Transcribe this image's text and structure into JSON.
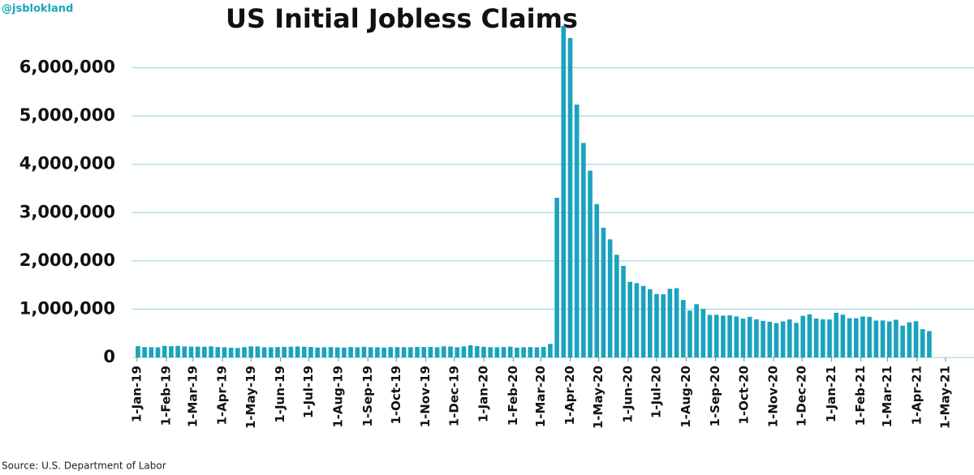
{
  "chart_data": {
    "type": "bar",
    "handle": "@jsblokland",
    "title": "US Initial Jobless Claims",
    "source": "Source: U.S. Department of Labor",
    "color": "#1aa3bd",
    "grid": true,
    "x": [
      "2019-01-05",
      "2019-01-12",
      "2019-01-19",
      "2019-01-26",
      "2019-02-02",
      "2019-02-09",
      "2019-02-16",
      "2019-02-23",
      "2019-03-02",
      "2019-03-09",
      "2019-03-16",
      "2019-03-23",
      "2019-03-30",
      "2019-04-06",
      "2019-04-13",
      "2019-04-20",
      "2019-04-27",
      "2019-05-04",
      "2019-05-11",
      "2019-05-18",
      "2019-05-25",
      "2019-06-01",
      "2019-06-08",
      "2019-06-15",
      "2019-06-22",
      "2019-06-29",
      "2019-07-06",
      "2019-07-13",
      "2019-07-20",
      "2019-07-27",
      "2019-08-03",
      "2019-08-10",
      "2019-08-17",
      "2019-08-24",
      "2019-08-31",
      "2019-09-07",
      "2019-09-14",
      "2019-09-21",
      "2019-09-28",
      "2019-10-05",
      "2019-10-12",
      "2019-10-19",
      "2019-10-26",
      "2019-11-02",
      "2019-11-09",
      "2019-11-16",
      "2019-11-23",
      "2019-11-30",
      "2019-12-07",
      "2019-12-14",
      "2019-12-21",
      "2019-12-28",
      "2020-01-04",
      "2020-01-11",
      "2020-01-18",
      "2020-01-25",
      "2020-02-01",
      "2020-02-08",
      "2020-02-15",
      "2020-02-22",
      "2020-02-29",
      "2020-03-07",
      "2020-03-14",
      "2020-03-21",
      "2020-03-28",
      "2020-04-04",
      "2020-04-11",
      "2020-04-18",
      "2020-04-25",
      "2020-05-02",
      "2020-05-09",
      "2020-05-16",
      "2020-05-23",
      "2020-05-30",
      "2020-06-06",
      "2020-06-13",
      "2020-06-20",
      "2020-06-27",
      "2020-07-04",
      "2020-07-11",
      "2020-07-18",
      "2020-07-25",
      "2020-08-01",
      "2020-08-08",
      "2020-08-15",
      "2020-08-22",
      "2020-08-29",
      "2020-09-05",
      "2020-09-12",
      "2020-09-19",
      "2020-09-26",
      "2020-10-03",
      "2020-10-10",
      "2020-10-17",
      "2020-10-24",
      "2020-10-31",
      "2020-11-07",
      "2020-11-14",
      "2020-11-21",
      "2020-11-28",
      "2020-12-05",
      "2020-12-12",
      "2020-12-19",
      "2020-12-26",
      "2021-01-02",
      "2021-01-09",
      "2021-01-16",
      "2021-01-23",
      "2021-01-30",
      "2021-02-06",
      "2021-02-13",
      "2021-02-20",
      "2021-02-27",
      "2021-03-06",
      "2021-03-13",
      "2021-03-20",
      "2021-03-27",
      "2021-04-03",
      "2021-04-10",
      "2021-04-17"
    ],
    "values": [
      233000,
      216000,
      213000,
      210000,
      240000,
      234000,
      239000,
      229000,
      225000,
      225000,
      221000,
      230000,
      216000,
      211000,
      202000,
      196000,
      213000,
      230000,
      228000,
      212000,
      211000,
      216000,
      219000,
      222000,
      227000,
      222000,
      218000,
      206000,
      211000,
      216000,
      209000,
      206000,
      216000,
      209000,
      220000,
      213000,
      211000,
      206000,
      215000,
      214000,
      213000,
      213000,
      219000,
      217000,
      218000,
      211000,
      230000,
      226000,
      212000,
      228000,
      252000,
      235000,
      222000,
      214000,
      211000,
      216000,
      223000,
      204000,
      212000,
      216000,
      211000,
      219000,
      282000,
      3307000,
      6867000,
      6615000,
      5237000,
      4442000,
      3867000,
      3176000,
      2687000,
      2446000,
      2126000,
      1897000,
      1566000,
      1540000,
      1482000,
      1413000,
      1314000,
      1307000,
      1422000,
      1435000,
      1191000,
      971000,
      1104000,
      1006000,
      881000,
      884000,
      866000,
      873000,
      849000,
      804000,
      842000,
      791000,
      758000,
      738000,
      711000,
      748000,
      787000,
      716000,
      862000,
      892000,
      806000,
      790000,
      787000,
      926000,
      886000,
      812000,
      812000,
      848000,
      841000,
      765000,
      766000,
      746000,
      781000,
      658000,
      728000,
      751000,
      586000,
      547000
    ],
    "xlim": [
      "2018-12-27",
      "2021-05-31"
    ],
    "xticks": [
      {
        "value": "2019-01-01",
        "label": "1-Jan-19"
      },
      {
        "value": "2019-02-01",
        "label": "1-Feb-19"
      },
      {
        "value": "2019-03-01",
        "label": "1-Mar-19"
      },
      {
        "value": "2019-04-01",
        "label": "1-Apr-19"
      },
      {
        "value": "2019-05-01",
        "label": "1-May-19"
      },
      {
        "value": "2019-06-01",
        "label": "1-Jun-19"
      },
      {
        "value": "2019-07-01",
        "label": "1-Jul-19"
      },
      {
        "value": "2019-08-01",
        "label": "1-Aug-19"
      },
      {
        "value": "2019-09-01",
        "label": "1-Sep-19"
      },
      {
        "value": "2019-10-01",
        "label": "1-Oct-19"
      },
      {
        "value": "2019-11-01",
        "label": "1-Nov-19"
      },
      {
        "value": "2019-12-01",
        "label": "1-Dec-19"
      },
      {
        "value": "2020-01-01",
        "label": "1-Jan-20"
      },
      {
        "value": "2020-02-01",
        "label": "1-Feb-20"
      },
      {
        "value": "2020-03-01",
        "label": "1-Mar-20"
      },
      {
        "value": "2020-04-01",
        "label": "1-Apr-20"
      },
      {
        "value": "2020-05-01",
        "label": "1-May-20"
      },
      {
        "value": "2020-06-01",
        "label": "1-Jun-20"
      },
      {
        "value": "2020-07-01",
        "label": "1-Jul-20"
      },
      {
        "value": "2020-08-01",
        "label": "1-Aug-20"
      },
      {
        "value": "2020-09-01",
        "label": "1-Sep-20"
      },
      {
        "value": "2020-10-01",
        "label": "1-Oct-20"
      },
      {
        "value": "2020-11-01",
        "label": "1-Nov-20"
      },
      {
        "value": "2020-12-01",
        "label": "1-Dec-20"
      },
      {
        "value": "2021-01-01",
        "label": "1-Jan-21"
      },
      {
        "value": "2021-02-01",
        "label": "1-Feb-21"
      },
      {
        "value": "2021-03-01",
        "label": "1-Mar-21"
      },
      {
        "value": "2021-04-01",
        "label": "1-Apr-21"
      },
      {
        "value": "2021-05-01",
        "label": "1-May-21"
      }
    ],
    "ylim": [
      0,
      7000000
    ],
    "yticks": [
      0,
      {
        "value": 1000000,
        "label": "1,000,000"
      },
      {
        "value": 2000000,
        "label": "2,000,000"
      },
      {
        "value": 3000000,
        "label": "3,000,000"
      },
      {
        "value": 4000000,
        "label": "4,000,000"
      },
      {
        "value": 5000000,
        "label": "5,000,000"
      },
      {
        "value": 6000000,
        "label": "6,000,000"
      }
    ]
  }
}
